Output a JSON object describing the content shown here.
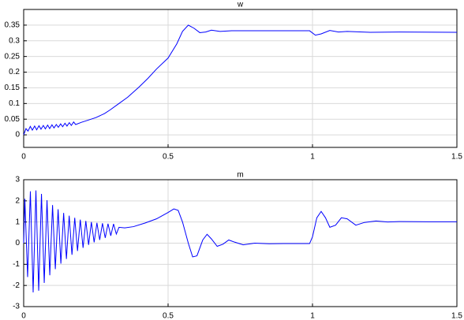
{
  "chart_data": [
    {
      "type": "line",
      "title": "w",
      "x": [
        0,
        0.008,
        0.015,
        0.023,
        0.03,
        0.038,
        0.045,
        0.053,
        0.06,
        0.068,
        0.075,
        0.083,
        0.09,
        0.098,
        0.105,
        0.113,
        0.12,
        0.128,
        0.135,
        0.143,
        0.15,
        0.158,
        0.165,
        0.173,
        0.18,
        0.2,
        0.22,
        0.25,
        0.28,
        0.3,
        0.33,
        0.36,
        0.4,
        0.43,
        0.46,
        0.5,
        0.53,
        0.55,
        0.57,
        0.59,
        0.61,
        0.63,
        0.65,
        0.68,
        0.72,
        0.8,
        0.9,
        0.99,
        1.01,
        1.03,
        1.06,
        1.09,
        1.12,
        1.2,
        1.3,
        1.5
      ],
      "values": [
        0,
        0.02,
        0.012,
        0.027,
        0.015,
        0.028,
        0.016,
        0.029,
        0.018,
        0.03,
        0.019,
        0.031,
        0.02,
        0.032,
        0.022,
        0.033,
        0.024,
        0.035,
        0.026,
        0.037,
        0.028,
        0.039,
        0.03,
        0.041,
        0.033,
        0.04,
        0.046,
        0.055,
        0.068,
        0.08,
        0.1,
        0.12,
        0.153,
        0.18,
        0.21,
        0.245,
        0.29,
        0.33,
        0.35,
        0.34,
        0.326,
        0.328,
        0.334,
        0.33,
        0.332,
        0.332,
        0.332,
        0.332,
        0.318,
        0.322,
        0.333,
        0.328,
        0.33,
        0.327,
        0.328,
        0.327
      ],
      "color": "#0000ff",
      "xlim": [
        0,
        1.5
      ],
      "xticks": [
        0,
        0.5,
        1,
        1.5
      ],
      "ylim": [
        -0.04,
        0.4
      ],
      "yticks": [
        0,
        0.05,
        0.1,
        0.15,
        0.2,
        0.25,
        0.3,
        0.35
      ],
      "grid": true
    },
    {
      "type": "line",
      "title": "m",
      "x": [
        0,
        0.004,
        0.0136,
        0.0232,
        0.0328,
        0.0424,
        0.052,
        0.0616,
        0.0712,
        0.0808,
        0.0904,
        0.1,
        0.1096,
        0.1192,
        0.1288,
        0.1384,
        0.148,
        0.1576,
        0.1672,
        0.1768,
        0.1864,
        0.196,
        0.2056,
        0.2152,
        0.2248,
        0.2344,
        0.244,
        0.2536,
        0.2632,
        0.2728,
        0.2824,
        0.292,
        0.3016,
        0.3112,
        0.3208,
        0.33,
        0.35,
        0.38,
        0.42,
        0.46,
        0.5,
        0.52,
        0.535,
        0.55,
        0.57,
        0.585,
        0.6,
        0.62,
        0.635,
        0.65,
        0.67,
        0.69,
        0.71,
        0.73,
        0.76,
        0.8,
        0.85,
        0.9,
        0.99,
        1.0,
        1.015,
        1.03,
        1.045,
        1.06,
        1.08,
        1.1,
        1.12,
        1.15,
        1.18,
        1.22,
        1.26,
        1.3,
        1.4,
        1.5
      ],
      "values": [
        0,
        2.1,
        -1.6,
        2.45,
        -2.33,
        2.49,
        -2.25,
        2.33,
        -1.88,
        2.03,
        -1.52,
        1.8,
        -1.23,
        1.6,
        -0.97,
        1.43,
        -0.75,
        1.3,
        -0.55,
        1.2,
        -0.37,
        1.11,
        -0.22,
        1.05,
        -0.08,
        1.0,
        0.04,
        0.96,
        0.15,
        0.94,
        0.25,
        0.92,
        0.35,
        0.91,
        0.43,
        0.75,
        0.72,
        0.78,
        0.95,
        1.15,
        1.45,
        1.62,
        1.55,
        1.0,
        0.0,
        -0.65,
        -0.6,
        0.15,
        0.42,
        0.2,
        -0.15,
        -0.05,
        0.15,
        0.05,
        -0.08,
        0.0,
        -0.03,
        -0.02,
        -0.02,
        0.3,
        1.2,
        1.5,
        1.2,
        0.75,
        0.85,
        1.2,
        1.15,
        0.85,
        0.98,
        1.05,
        1.0,
        1.02,
        1.01,
        1.01
      ],
      "color": "#0000ff",
      "xlim": [
        0,
        1.5
      ],
      "xticks": [
        0,
        0.5,
        1,
        1.5
      ],
      "ylim": [
        -3,
        3
      ],
      "yticks": [
        -3,
        -2,
        -1,
        0,
        1,
        2,
        3
      ],
      "grid": true
    }
  ]
}
